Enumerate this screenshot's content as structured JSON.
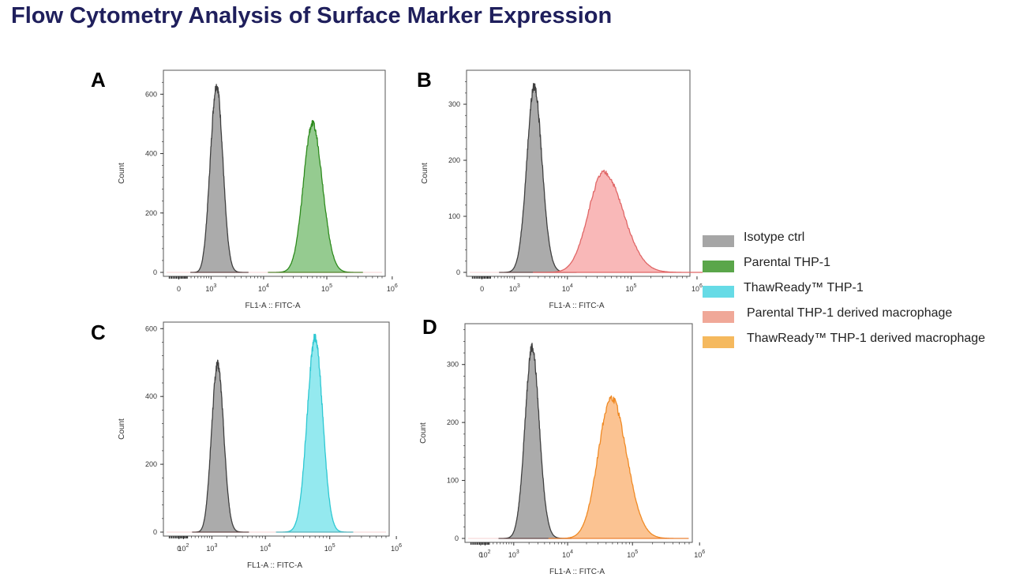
{
  "title": "Flow Cytometry Analysis of Surface Marker Expression",
  "legend": [
    {
      "label": "Isotype ctrl",
      "color": "#a6a6a6"
    },
    {
      "label": "Parental THP-1",
      "color": "#5aa64a"
    },
    {
      "label": "ThawReady™ THP-1",
      "color": "#66dbe6"
    },
    {
      "label": "Parental THP-1 derived macrophage",
      "color": "#f0a898"
    },
    {
      "label": "ThawReady™ THP-1 derived macrophage",
      "color": "#f5b95e"
    }
  ],
  "chart_data": [
    {
      "panel": "A",
      "type": "area",
      "xlabel": "FL1-A :: FITC-A",
      "ylabel": "Count",
      "x_scale": "biexponential",
      "xticks": [
        "0",
        "10^3",
        "10^4",
        "10^5",
        "10^6"
      ],
      "yticks": [
        0,
        200,
        400,
        600
      ],
      "ylim": [
        0,
        670
      ],
      "series": [
        {
          "legend_index": 0,
          "color": "#a6a6a6",
          "stroke": "#404040",
          "peak_x": 1300,
          "peak_y": 630,
          "width_decades": 0.13,
          "skew": 0.95
        },
        {
          "legend_index": 1,
          "color": "#8fc88a",
          "stroke": "#2e8b1e",
          "peak_x": 60000,
          "peak_y": 500,
          "width_decades": 0.14,
          "skew": 1.1
        }
      ]
    },
    {
      "panel": "B",
      "type": "area",
      "xlabel": "FL1-A :: FITC-A",
      "ylabel": "Count",
      "x_scale": "biexponential",
      "xticks": [
        "0",
        "10^3",
        "10^4",
        "10^5",
        "10^6"
      ],
      "yticks": [
        0,
        100,
        200,
        300
      ],
      "ylim": [
        0,
        355
      ],
      "series": [
        {
          "legend_index": 0,
          "color": "#a6a6a6",
          "stroke": "#404040",
          "peak_x": 2500,
          "peak_y": 332,
          "width_decades": 0.15,
          "skew": 1.0
        },
        {
          "legend_index": 3,
          "color": "#f9b4b4",
          "stroke": "#e06666",
          "peak_x": 38000,
          "peak_y": 178,
          "width_decades": 0.24,
          "skew": 1.25
        }
      ]
    },
    {
      "panel": "C",
      "type": "area",
      "xlabel": "FL1-A :: FITC-A",
      "ylabel": "Count",
      "x_scale": "biexponential",
      "xticks": [
        "0",
        "10^2",
        "10^3",
        "10^4",
        "10^5",
        "10^6"
      ],
      "yticks": [
        0,
        200,
        400,
        600
      ],
      "ylim": [
        0,
        610
      ],
      "series": [
        {
          "legend_index": 0,
          "color": "#a6a6a6",
          "stroke": "#404040",
          "peak_x": 1300,
          "peak_y": 495,
          "width_decades": 0.12,
          "skew": 1.0
        },
        {
          "legend_index": 2,
          "color": "#8ee8ee",
          "stroke": "#2ec8d2",
          "peak_x": 60000,
          "peak_y": 575,
          "width_decades": 0.12,
          "skew": 0.95
        }
      ]
    },
    {
      "panel": "D",
      "type": "area",
      "xlabel": "FL1-A :: FITC-A",
      "ylabel": "Count",
      "x_scale": "biexponential",
      "xticks": [
        "0",
        "10^2",
        "10^3",
        "10^4",
        "10^5",
        "10^6"
      ],
      "yticks": [
        0,
        100,
        200,
        300
      ],
      "ylim": [
        0,
        365
      ],
      "series": [
        {
          "legend_index": 0,
          "color": "#a6a6a6",
          "stroke": "#404040",
          "peak_x": 2300,
          "peak_y": 330,
          "width_decades": 0.14,
          "skew": 1.0
        },
        {
          "legend_index": 4,
          "color": "#fbc08c",
          "stroke": "#f08a24",
          "peak_x": 48000,
          "peak_y": 242,
          "width_decades": 0.2,
          "skew": 1.15
        }
      ]
    }
  ]
}
